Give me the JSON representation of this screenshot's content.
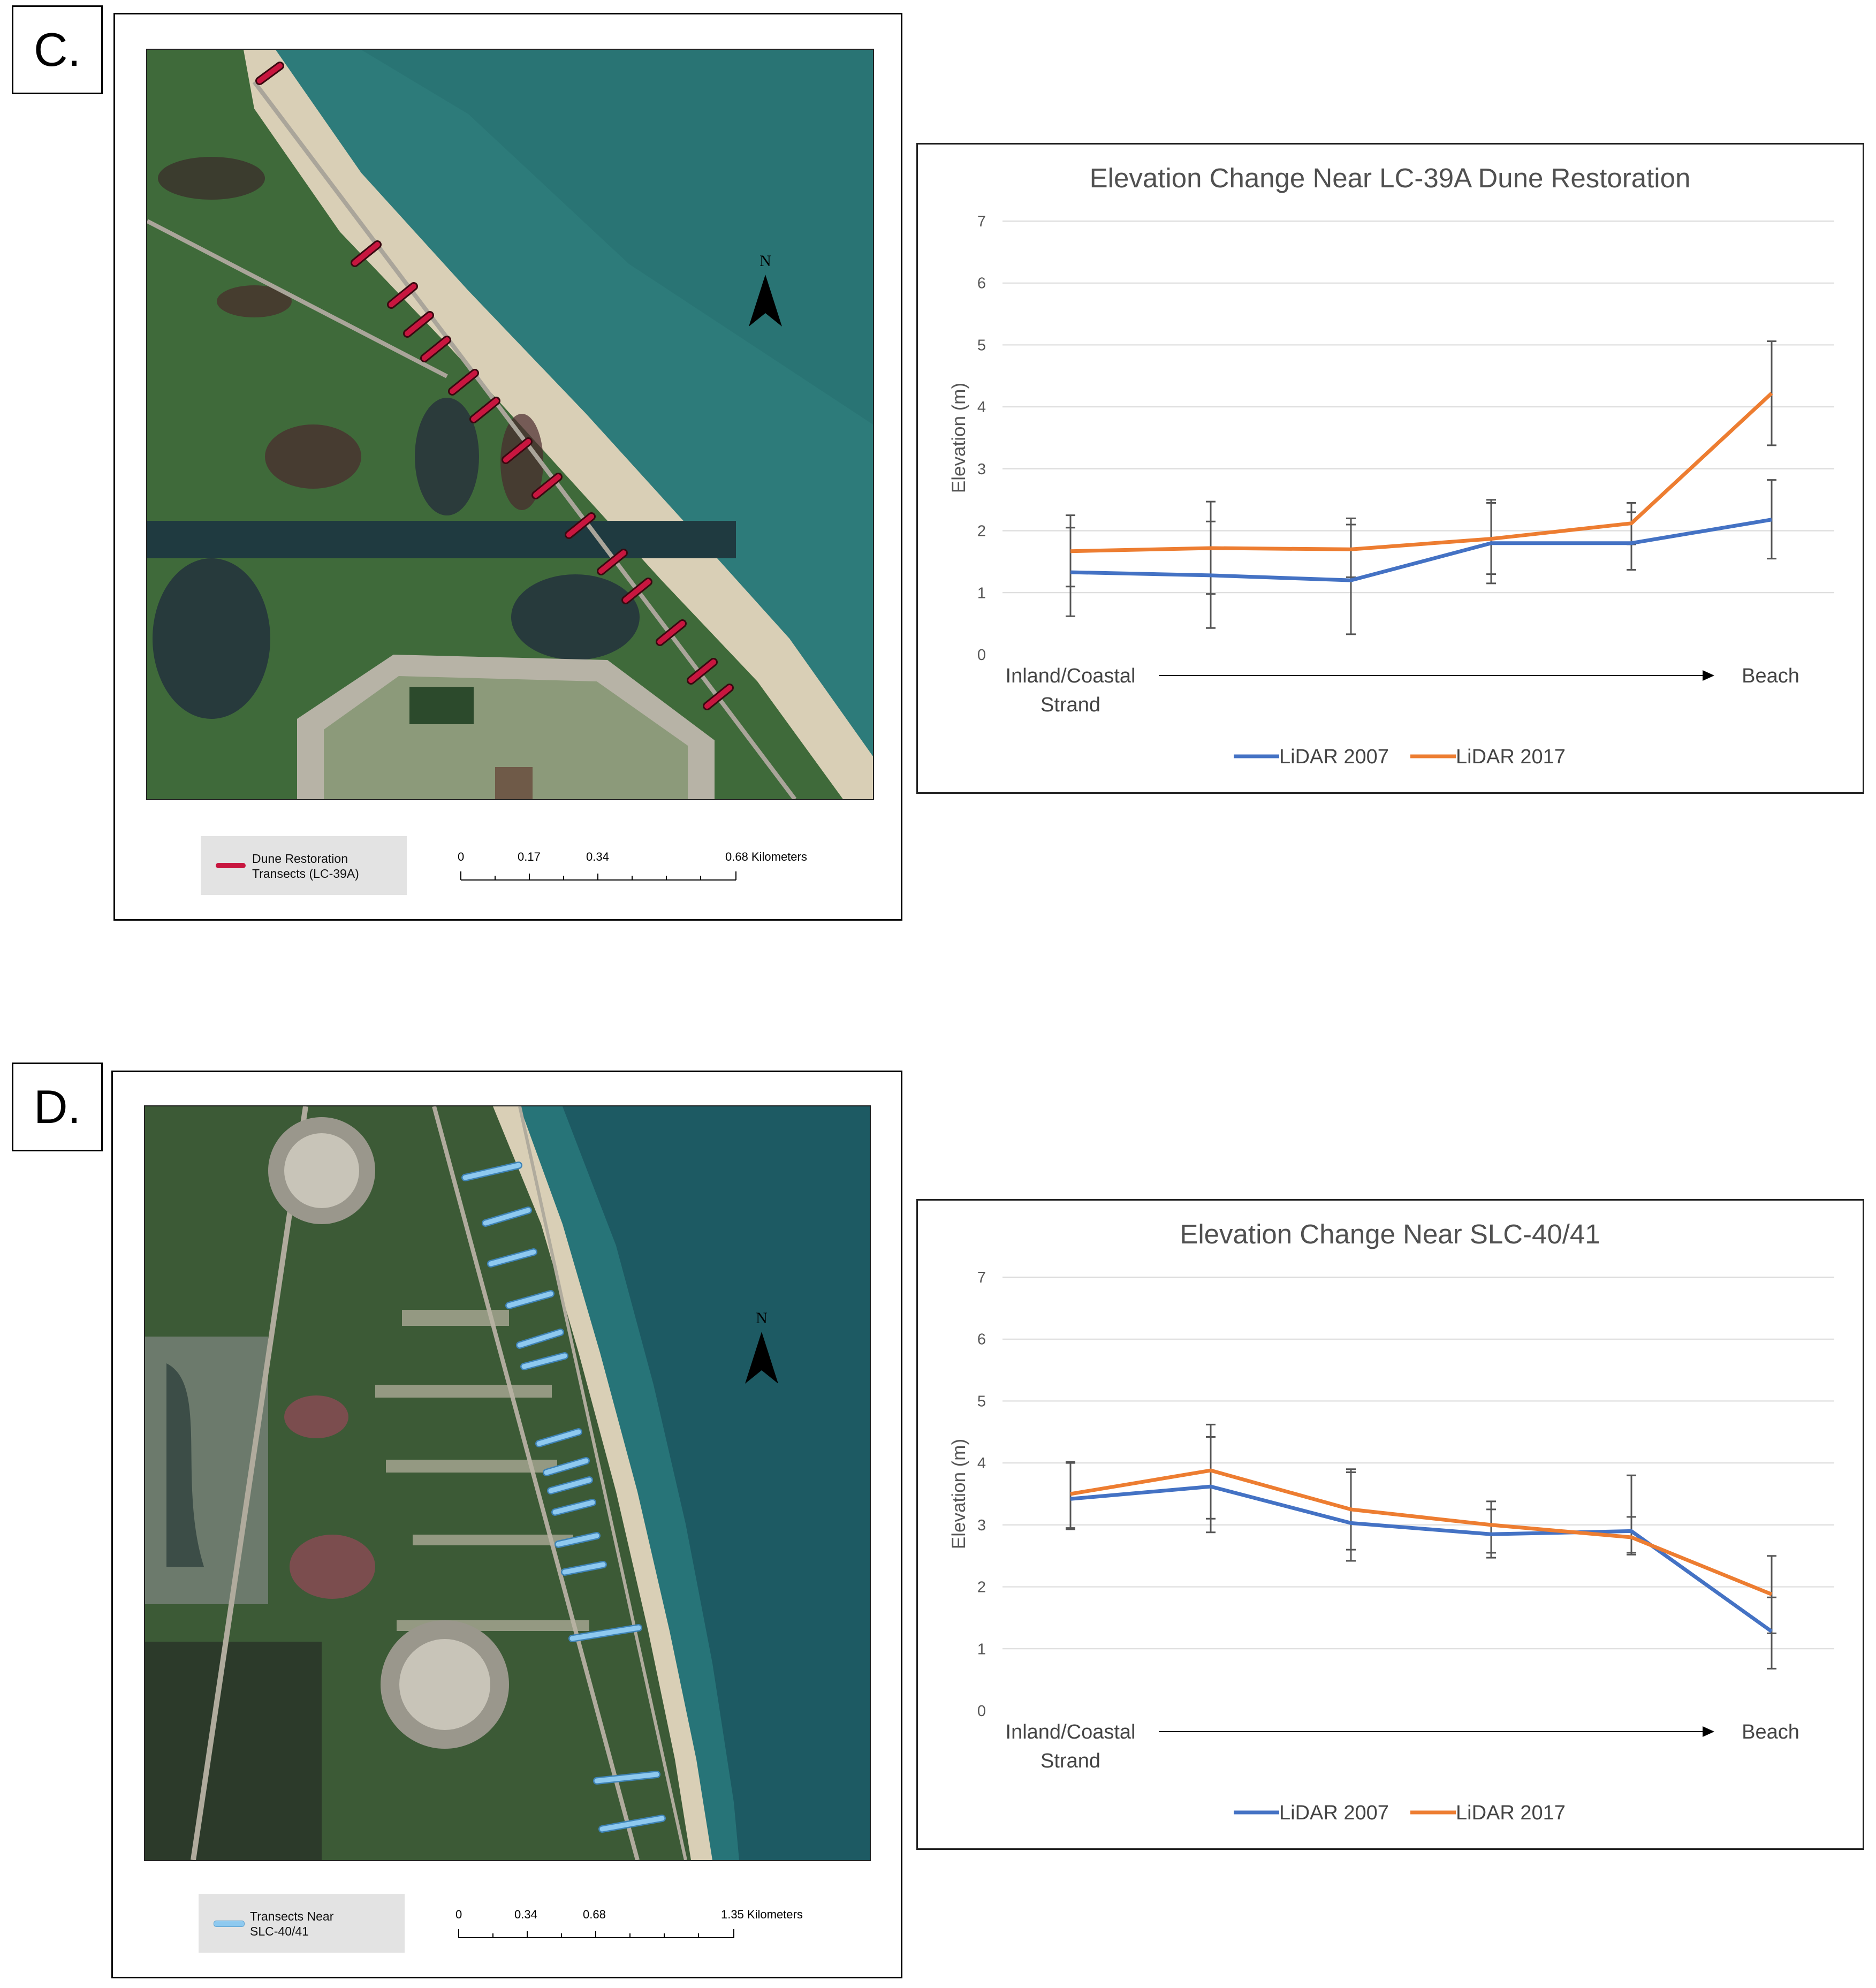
{
  "panels": [
    {
      "label": "C.",
      "map": {
        "north_label": "N",
        "legend_label": "Dune Restoration Transects (LC-39A)",
        "legend_color": "#c8163f",
        "scale_labels": [
          "0",
          "0.17",
          "0.34",
          "0.68 Kilometers"
        ]
      },
      "chart_data": {
        "type": "line",
        "title": "Elevation Change Near LC-39A Dune Restoration",
        "ylabel": "Elevation (m)",
        "ylim": [
          0,
          7
        ],
        "yticks": [
          "0",
          "1",
          "2",
          "3",
          "4",
          "5",
          "6",
          "7"
        ],
        "x_axis_start_label": "Inland/Coastal Strand",
        "x_axis_end_label": "Beach",
        "grid": true,
        "legend_position": "bottom",
        "series": [
          {
            "name": "LiDAR 2007",
            "color": "#4472c4",
            "values": [
              1.33,
              1.28,
              1.2,
              1.8,
              1.8,
              2.18
            ],
            "err_low": [
              0.62,
              0.43,
              0.33,
              1.15,
              1.37,
              1.55
            ],
            "err_high": [
              2.05,
              2.15,
              2.1,
              2.45,
              2.3,
              2.82
            ]
          },
          {
            "name": "LiDAR 2017",
            "color": "#ed7d31",
            "values": [
              1.67,
              1.72,
              1.7,
              1.87,
              2.12,
              4.22
            ],
            "err_low": [
              1.1,
              0.98,
              1.25,
              1.3,
              1.78,
              3.38
            ],
            "err_high": [
              2.25,
              2.47,
              2.2,
              2.5,
              2.45,
              5.06
            ]
          }
        ]
      }
    },
    {
      "label": "D.",
      "map": {
        "north_label": "N",
        "legend_label": "Transects Near SLC-40/41",
        "legend_color": "#8ec9ef",
        "scale_labels": [
          "0",
          "0.34",
          "0.68",
          "1.35 Kilometers"
        ]
      },
      "chart_data": {
        "type": "line",
        "title": "Elevation Change Near SLC-40/41",
        "ylabel": "Elevation (m)",
        "ylim": [
          0,
          7
        ],
        "yticks": [
          "0",
          "1",
          "2",
          "3",
          "4",
          "5",
          "6",
          "7"
        ],
        "x_axis_start_label": "Inland/Coastal Strand",
        "x_axis_end_label": "Beach",
        "grid": true,
        "legend_position": "bottom",
        "series": [
          {
            "name": "LiDAR 2007",
            "color": "#4472c4",
            "values": [
              3.42,
              3.62,
              3.03,
              2.85,
              2.9,
              1.28
            ],
            "err_low": [
              2.93,
              3.1,
              2.42,
              2.47,
              2.52,
              0.68
            ],
            "err_high": [
              4.0,
              4.42,
              3.85,
              3.25,
              3.13,
              1.83
            ]
          },
          {
            "name": "LiDAR 2017",
            "color": "#ed7d31",
            "values": [
              3.5,
              3.88,
              3.25,
              3.0,
              2.8,
              1.88
            ],
            "err_low": [
              2.95,
              2.88,
              2.6,
              2.55,
              2.55,
              1.25
            ],
            "err_high": [
              4.02,
              4.62,
              3.9,
              3.38,
              3.8,
              2.5
            ]
          }
        ]
      }
    }
  ]
}
